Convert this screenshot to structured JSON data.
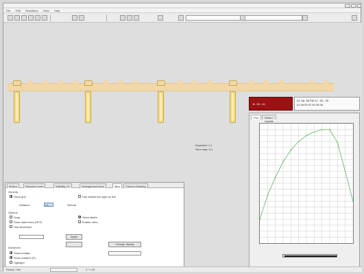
{
  "window": {
    "title": ""
  },
  "menubar": {
    "items": [
      "File",
      "Edit",
      "Simulation",
      "View",
      "Help"
    ]
  },
  "toolbar": {
    "combo_value": ""
  },
  "canvas": {
    "readout_lines": [
      "Expected: 1.1",
      "Time step: 0.1"
    ],
    "red_box_label": "11 :35 : 49",
    "info_lines": [
      "01 :48 :38  PM  12 : 05 : 25",
      "01   48   00   57   00   25   06"
    ]
  },
  "graph": {
    "tabs": [
      "Plot",
      "Show / Update"
    ],
    "colors": {
      "line": "#7bbf7b",
      "grid": "#c8c8c8"
    },
    "chart_data": {
      "type": "line",
      "x": [
        0,
        1,
        2,
        3,
        4,
        5,
        6,
        7,
        8,
        9,
        10,
        11,
        12
      ],
      "series": [
        {
          "values": [
            20,
            40,
            55,
            68,
            78,
            85,
            90,
            93,
            95,
            95,
            84,
            60,
            35
          ]
        }
      ],
      "ylim": [
        0,
        100
      ]
    }
  },
  "props": {
    "tabs": [
      "Motion",
      "Direction Lines",
      "Visibility (Y)",
      "Arrangement Axes",
      "Misc",
      "Column Drawing"
    ],
    "checkboxes": [
      {
        "label": "Show grid",
        "checked": true
      },
      {
        "label": "Use default line type as line",
        "checked": false
      },
      {
        "label": "Snap",
        "checked": false
      },
      {
        "label": "Show labels",
        "checked": true
      },
      {
        "label": "Draw hatch lines (OFF)",
        "checked": false
      },
      {
        "label": "Enable ortho",
        "checked": false
      },
      {
        "label": "Use dimension",
        "checked": false
      },
      {
        "label": "Show tooltips",
        "checked": true
      },
      {
        "label": "Show markers (P)",
        "checked": true
      },
      {
        "label": "Highlight",
        "checked": false
      }
    ],
    "fields": {
      "field1_label": "Distance",
      "field1_value": "1.5",
      "field2_label": "Interval",
      "field2_value": "",
      "btn1": "Apply",
      "btn2": "Change display"
    },
    "section_labels": [
      "General",
      "Options",
      "Advanced"
    ]
  },
  "status": {
    "items": [
      "Ready / Idle",
      "0 / 1.05"
    ]
  }
}
